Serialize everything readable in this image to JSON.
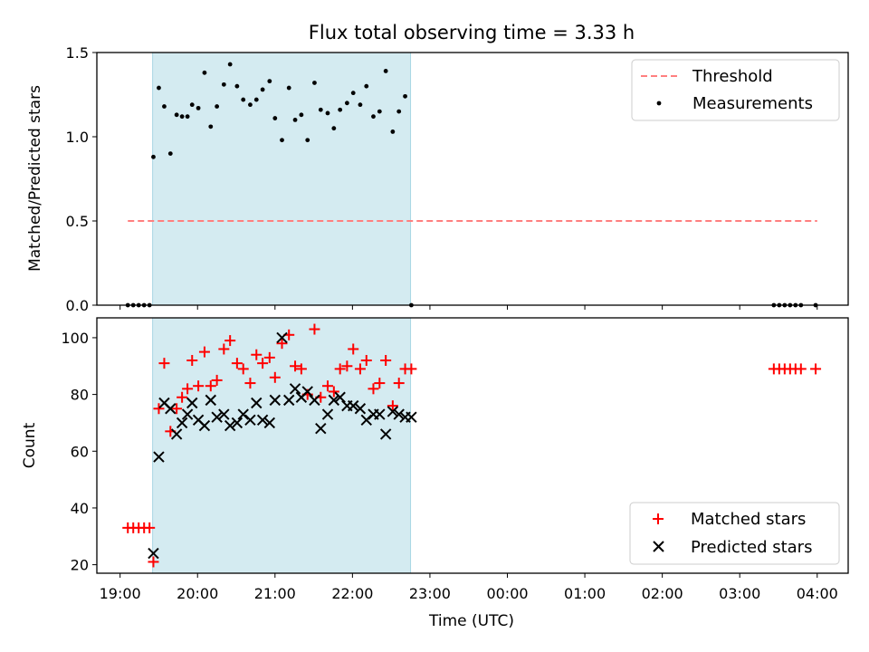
{
  "figure": {
    "title": "Flux total observing time = 3.33 h",
    "xlabel": "Time (UTC)",
    "top_ylabel": "Matched/Predicted stars",
    "bottom_ylabel": "Count"
  },
  "chart_data": [
    {
      "type": "scatter",
      "title": "Flux total observing time = 3.33 h",
      "ylabel": "Matched/Predicted stars",
      "xlim_hours": [
        18.7,
        28.4
      ],
      "ylim": [
        0,
        1.5
      ],
      "x_ticks": [
        19,
        20,
        21,
        22,
        23,
        24,
        25,
        26,
        27,
        28
      ],
      "x_tick_labels": [],
      "y_ticks": [
        0.0,
        0.5,
        1.0,
        1.5
      ],
      "y_tick_labels": [
        "0.0",
        "0.5",
        "1.0",
        "1.5"
      ],
      "shaded_region_hours": [
        19.42,
        22.75
      ],
      "shaded_color": "#d4ebf1",
      "grid": false,
      "legend_position": "top-right",
      "threshold": {
        "name": "Threshold",
        "y": 0.5,
        "x_range": [
          19.1,
          28.0
        ],
        "color": "#ff7f7f"
      },
      "series": [
        {
          "name": "Measurements",
          "color": "#000000",
          "marker": "dot",
          "x": [
            19.1,
            19.17,
            19.24,
            19.31,
            19.38,
            19.43,
            19.5,
            19.57,
            19.65,
            19.73,
            19.8,
            19.87,
            19.93,
            20.01,
            20.09,
            20.17,
            20.25,
            20.34,
            20.42,
            20.51,
            20.59,
            20.68,
            20.76,
            20.84,
            20.93,
            21.0,
            21.09,
            21.18,
            21.26,
            21.34,
            21.42,
            21.51,
            21.59,
            21.68,
            21.76,
            21.84,
            21.93,
            22.01,
            22.1,
            22.18,
            22.27,
            22.35,
            22.43,
            22.52,
            22.6,
            22.68,
            22.76,
            27.44,
            27.51,
            27.58,
            27.65,
            27.72,
            27.79,
            27.98
          ],
          "y": [
            0,
            0,
            0,
            0,
            0,
            0.88,
            1.29,
            1.18,
            0.9,
            1.13,
            1.12,
            1.12,
            1.19,
            1.17,
            1.38,
            1.06,
            1.18,
            1.31,
            1.43,
            1.3,
            1.22,
            1.19,
            1.22,
            1.28,
            1.33,
            1.11,
            0.98,
            1.29,
            1.1,
            1.13,
            0.98,
            1.32,
            1.16,
            1.14,
            1.05,
            1.16,
            1.2,
            1.26,
            1.19,
            1.3,
            1.12,
            1.15,
            1.39,
            1.03,
            1.15,
            1.24,
            0,
            0,
            0,
            0,
            0,
            0,
            0,
            0
          ]
        }
      ]
    },
    {
      "type": "scatter",
      "xlabel": "Time (UTC)",
      "ylabel": "Count",
      "xlim_hours": [
        18.7,
        28.4
      ],
      "ylim": [
        17,
        107
      ],
      "x_ticks": [
        19,
        20,
        21,
        22,
        23,
        24,
        25,
        26,
        27,
        28
      ],
      "x_tick_labels": [
        "19:00",
        "20:00",
        "21:00",
        "22:00",
        "23:00",
        "00:00",
        "01:00",
        "02:00",
        "03:00",
        "04:00"
      ],
      "y_ticks": [
        20,
        40,
        60,
        80,
        100
      ],
      "y_tick_labels": [
        "20",
        "40",
        "60",
        "80",
        "100"
      ],
      "shaded_region_hours": [
        19.42,
        22.75
      ],
      "grid": false,
      "legend_position": "bottom-right",
      "series": [
        {
          "name": "Matched stars",
          "color": "#ff0000",
          "marker": "plus",
          "x": [
            19.1,
            19.17,
            19.24,
            19.31,
            19.38,
            19.43,
            19.5,
            19.57,
            19.65,
            19.73,
            19.8,
            19.87,
            19.93,
            20.01,
            20.09,
            20.17,
            20.25,
            20.34,
            20.42,
            20.51,
            20.59,
            20.68,
            20.76,
            20.84,
            20.93,
            21.0,
            21.09,
            21.18,
            21.26,
            21.34,
            21.42,
            21.51,
            21.59,
            21.68,
            21.76,
            21.84,
            21.93,
            22.01,
            22.1,
            22.18,
            22.27,
            22.35,
            22.43,
            22.52,
            22.6,
            22.68,
            22.76,
            27.44,
            27.51,
            27.58,
            27.65,
            27.72,
            27.79,
            27.98
          ],
          "y": [
            33,
            33,
            33,
            33,
            33,
            21,
            75,
            91,
            67,
            75,
            79,
            82,
            92,
            83,
            95,
            83,
            85,
            96,
            99,
            91,
            89,
            84,
            94,
            91,
            93,
            86,
            98,
            101,
            90,
            89,
            80,
            103,
            79,
            83,
            81,
            89,
            90,
            96,
            89,
            92,
            82,
            84,
            92,
            76,
            84,
            89,
            89,
            89,
            89,
            89,
            89,
            89,
            89,
            89
          ]
        },
        {
          "name": "Predicted stars",
          "color": "#000000",
          "marker": "x",
          "x": [
            19.43,
            19.5,
            19.57,
            19.65,
            19.73,
            19.8,
            19.87,
            19.93,
            20.01,
            20.09,
            20.17,
            20.25,
            20.34,
            20.42,
            20.51,
            20.59,
            20.68,
            20.76,
            20.84,
            20.93,
            21.0,
            21.09,
            21.18,
            21.26,
            21.34,
            21.42,
            21.51,
            21.59,
            21.68,
            21.76,
            21.84,
            21.93,
            22.01,
            22.1,
            22.18,
            22.27,
            22.35,
            22.43,
            22.52,
            22.6,
            22.68,
            22.76
          ],
          "y": [
            24,
            58,
            77,
            75,
            66,
            70,
            73,
            77,
            71,
            69,
            78,
            72,
            73,
            69,
            70,
            73,
            71,
            77,
            71,
            70,
            78,
            100,
            78,
            82,
            79,
            81,
            78,
            68,
            73,
            78,
            79,
            76,
            76,
            75,
            71,
            73,
            73,
            66,
            74,
            73,
            72,
            72
          ]
        }
      ]
    }
  ]
}
